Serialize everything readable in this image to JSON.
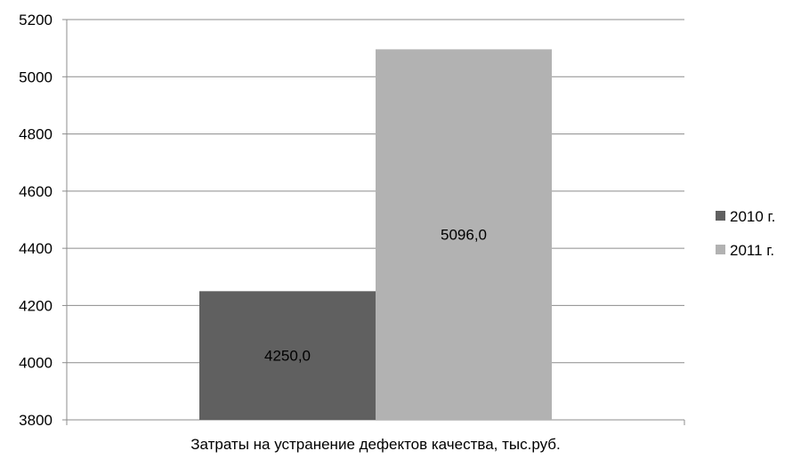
{
  "chart_data": {
    "type": "bar",
    "categories": [
      "Затраты на устранение дефектов качества, тыс.руб."
    ],
    "series": [
      {
        "name": "2010 г.",
        "values": [
          4250.0
        ],
        "color": "#606060",
        "label": "4250,0"
      },
      {
        "name": "2011 г.",
        "values": [
          5096.0
        ],
        "color": "#b2b2b2",
        "label": "5096,0"
      }
    ],
    "xlabel": "Затраты на устранение дефектов качества, тыс.руб.",
    "ylabel": "",
    "ylim": [
      3800,
      5200
    ],
    "yticks": [
      3800,
      4000,
      4200,
      4400,
      4600,
      4800,
      5000,
      5200
    ],
    "grid": true,
    "legend": "right"
  }
}
